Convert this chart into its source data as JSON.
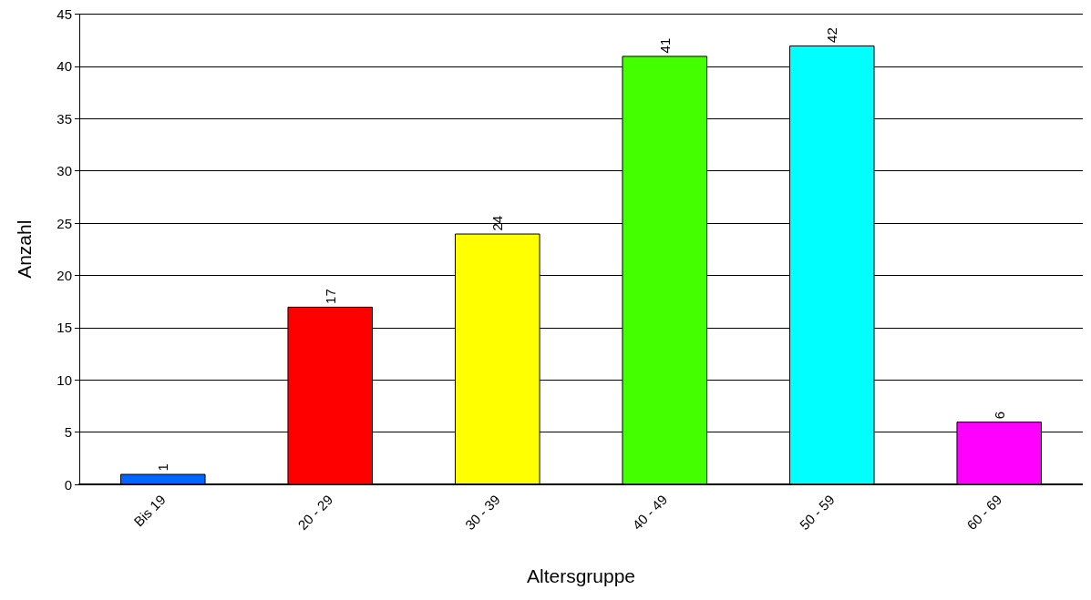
{
  "chart_data": {
    "type": "bar",
    "xlabel": "Altersgruppe",
    "ylabel": "Anzahl",
    "categories": [
      "Bis 19",
      "20 - 29",
      "30 - 39",
      "40 - 49",
      "50 - 59",
      "60 - 69"
    ],
    "values": [
      1,
      17,
      24,
      41,
      42,
      6
    ],
    "colors": [
      "#0066ff",
      "#ff0000",
      "#ffff00",
      "#44ff00",
      "#00ffff",
      "#ff00ff"
    ],
    "ylim": [
      0,
      45
    ],
    "yticks": [
      0,
      5,
      10,
      15,
      20,
      25,
      30,
      35,
      40,
      45
    ],
    "grid": "y",
    "data_labels": true
  }
}
